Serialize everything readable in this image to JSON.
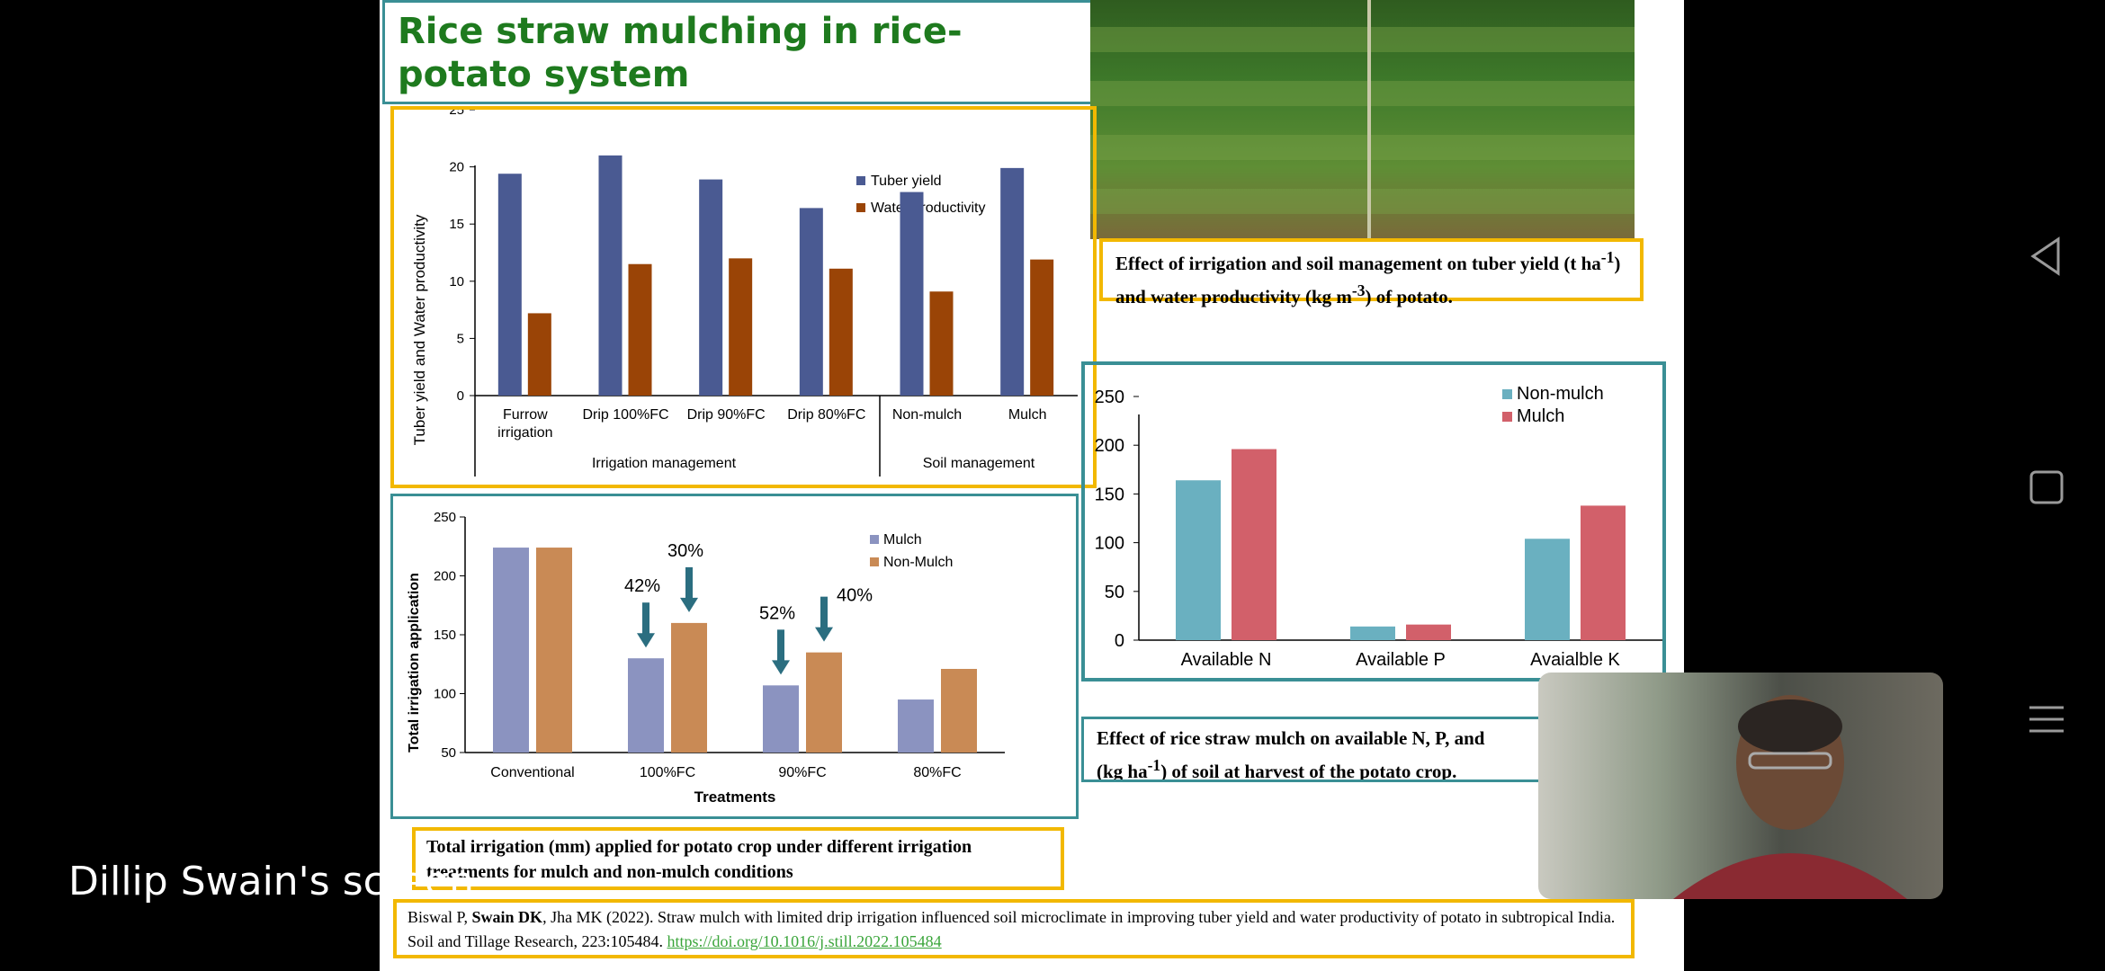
{
  "slide": {
    "title": "Rice straw mulching in rice-potato system",
    "caption1": {
      "prefix": "Effect of irrigation and soil management on tuber yield (t ha",
      "sup1": "-1",
      "middle": ") and water productivity (kg m",
      "sup2": "-3",
      "suffix": ") of potato."
    },
    "caption2": {
      "line1": "Effect of rice straw mulch on available N, P, and",
      "line2_prefix": "(kg ha",
      "sup": "-1",
      "line2_suffix": ") of soil at harvest of the potato crop."
    },
    "caption3": "Total irrigation (mm) applied for potato crop under different irrigation treatments for mulch and non-mulch conditions",
    "citation": {
      "authors_a": "Biswal P, ",
      "authors_b": "Swain DK",
      "authors_c": ", Jha MK (2022). Straw mulch with limited drip irrigation influenced soil microclimate in improving tuber yield and water productivity of potato in subtropical India. Soil and Tillage Research, 223:105484. ",
      "link": "https://doi.org/10.1016/j.still.2022.105484"
    }
  },
  "chart_data": [
    {
      "type": "bar",
      "ylabel": "Tuber yield and Water productivity",
      "ylim": [
        0,
        25
      ],
      "yticks": [
        "0",
        "5",
        "10",
        "15",
        "20",
        "25"
      ],
      "categories": [
        "Furrow irrigation",
        "Drip 100%FC",
        "Drip 90%FC",
        "Drip 80%FC",
        "Non-mulch",
        "Mulch"
      ],
      "groups": [
        "Irrigation management",
        "Soil management"
      ],
      "series": [
        {
          "name": "Tuber yield",
          "values": [
            19.4,
            21.0,
            18.9,
            16.4,
            17.8,
            19.9
          ]
        },
        {
          "name": "Water productivity",
          "values": [
            7.2,
            11.5,
            12.0,
            11.1,
            9.1,
            11.9
          ]
        }
      ],
      "colors": [
        "#4a5a92",
        "#9a4406"
      ],
      "legend": "top-right"
    },
    {
      "type": "bar",
      "xlabel": "Treatments",
      "ylabel": "Total irrigation application",
      "ylim": [
        50,
        250
      ],
      "yticks": [
        "50",
        "100",
        "150",
        "200",
        "250"
      ],
      "categories": [
        "Conventional",
        "100%FC",
        "90%FC",
        "80%FC"
      ],
      "series": [
        {
          "name": "Mulch",
          "values": [
            224,
            130,
            107,
            95
          ]
        },
        {
          "name": "Non-Mulch",
          "values": [
            224,
            160,
            135,
            121
          ]
        }
      ],
      "annotations": [
        "42%",
        "30%",
        "52%",
        "40%"
      ],
      "colors": [
        "#8b93c0",
        "#c98a55"
      ],
      "legend": "top-right"
    },
    {
      "type": "bar",
      "ylim": [
        0,
        250
      ],
      "yticks": [
        "0",
        "50",
        "100",
        "150",
        "200",
        "250"
      ],
      "categories": [
        "Available N",
        "Available P",
        "Avaialble K"
      ],
      "series": [
        {
          "name": "Non-mulch",
          "values": [
            164,
            14,
            104
          ]
        },
        {
          "name": "Mulch",
          "values": [
            196,
            16,
            138
          ]
        }
      ],
      "colors": [
        "#6ab0c0",
        "#d2606a"
      ],
      "legend": "top-right"
    }
  ],
  "overlay": {
    "screen_label": "Dillip Swain's screen"
  },
  "nav": {
    "icons": [
      "back-icon",
      "home-icon",
      "recents-icon"
    ]
  }
}
